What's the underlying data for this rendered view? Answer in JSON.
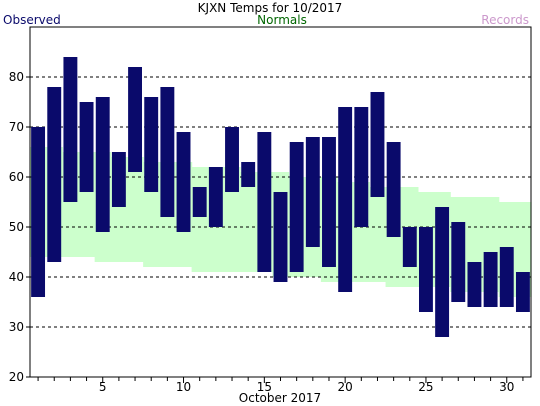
{
  "colors": {
    "observed": "#0a0a6b",
    "normals_band": "#ccffcc",
    "normals_label": "#006600",
    "records_label": "#cc99cc",
    "title": "#000000",
    "grid": "#000000",
    "background": "#ffffff"
  },
  "chart_data": {
    "type": "bar",
    "title": "KJXN Temps for 10/2017",
    "legend": {
      "observed": "Observed",
      "normals": "Normals",
      "records": "Records"
    },
    "xlabel": "October 2017",
    "ylabel": "",
    "xlim": [
      1,
      31
    ],
    "ylim": [
      20,
      90
    ],
    "x_ticks": [
      5,
      10,
      15,
      20,
      25,
      30
    ],
    "y_ticks": [
      20,
      30,
      40,
      50,
      60,
      70,
      80
    ],
    "grid": "horizontal dashed",
    "days": [
      1,
      2,
      3,
      4,
      5,
      6,
      7,
      8,
      9,
      10,
      11,
      12,
      13,
      14,
      15,
      16,
      17,
      18,
      19,
      20,
      21,
      22,
      23,
      24,
      25,
      26,
      27,
      28,
      29,
      30,
      31
    ],
    "series": [
      {
        "name": "Observed",
        "high": [
          70,
          78,
          84,
          75,
          76,
          65,
          82,
          76,
          78,
          69,
          58,
          62,
          70,
          63,
          69,
          57,
          67,
          68,
          68,
          74,
          74,
          77,
          67,
          50,
          50,
          54,
          51,
          43,
          45,
          46,
          41
        ],
        "low": [
          36,
          43,
          55,
          57,
          49,
          54,
          61,
          57,
          52,
          49,
          52,
          50,
          57,
          58,
          41,
          39,
          41,
          46,
          42,
          37,
          50,
          56,
          48,
          42,
          33,
          28,
          35,
          34,
          34,
          34,
          33
        ]
      },
      {
        "name": "Normals",
        "high": [
          66,
          66,
          65,
          65,
          65,
          64,
          64,
          63,
          63,
          63,
          62,
          62,
          62,
          61,
          61,
          61,
          60,
          60,
          60,
          59,
          59,
          58,
          58,
          58,
          57,
          57,
          56,
          56,
          56,
          55,
          55
        ],
        "low": [
          44,
          44,
          44,
          44,
          43,
          43,
          43,
          42,
          42,
          42,
          41,
          41,
          41,
          41,
          41,
          40,
          40,
          40,
          39,
          39,
          39,
          39,
          38,
          38,
          38,
          38,
          37,
          37,
          37,
          36,
          36
        ]
      }
    ]
  }
}
